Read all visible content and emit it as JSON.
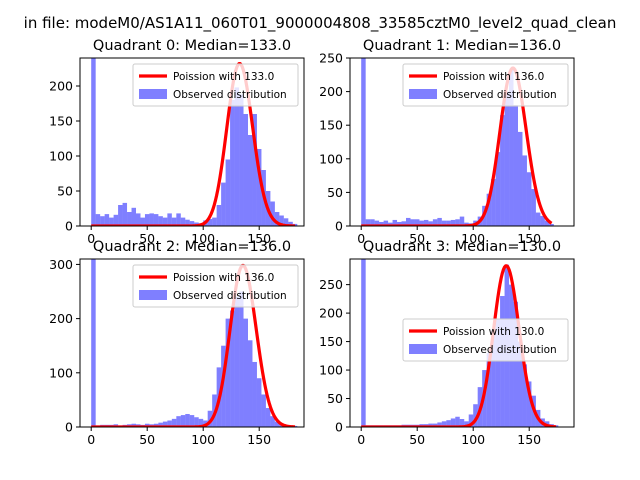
{
  "figure": {
    "suptitle": "in file: modeM0/AS1A11_060T01_9000004808_33585cztM0_level2_quad_clean",
    "colors": {
      "observed": "#0000ff",
      "poisson": "#ff0000",
      "axis": "#000000"
    }
  },
  "chart_data": [
    {
      "type": "bar",
      "title": "Quadrant 0: Median=133.0",
      "xlabel": "",
      "ylabel": "",
      "xlim": [
        -10,
        190
      ],
      "ylim": [
        0,
        240
      ],
      "xticks": [
        0,
        50,
        100,
        150
      ],
      "yticks": [
        0,
        50,
        100,
        150,
        200
      ],
      "legend": {
        "position": "top-right",
        "entries": [
          "Poission with 133.0",
          "Observed distribution"
        ]
      },
      "bin_width": 4,
      "observed": {
        "bin_starts": [
          0,
          4,
          8,
          12,
          16,
          20,
          24,
          28,
          32,
          36,
          40,
          44,
          48,
          52,
          56,
          60,
          64,
          68,
          72,
          76,
          80,
          84,
          88,
          92,
          96,
          100,
          104,
          108,
          112,
          116,
          120,
          124,
          128,
          132,
          136,
          140,
          144,
          148,
          152,
          156,
          160,
          164,
          168,
          172,
          176,
          180
        ],
        "values": [
          240,
          17,
          14,
          17,
          12,
          16,
          30,
          33,
          20,
          26,
          18,
          12,
          17,
          18,
          17,
          14,
          12,
          18,
          12,
          18,
          12,
          9,
          7,
          5,
          4,
          8,
          10,
          12,
          30,
          62,
          95,
          180,
          198,
          188,
          160,
          130,
          160,
          110,
          80,
          50,
          35,
          20,
          15,
          11,
          6,
          3
        ]
      },
      "poisson": {
        "mean": 133.0,
        "peak": 232
      }
    },
    {
      "type": "bar",
      "title": "Quadrant 1: Median=136.0",
      "xlabel": "",
      "ylabel": "",
      "xlim": [
        -10,
        190
      ],
      "ylim": [
        0,
        250
      ],
      "xticks": [
        0,
        50,
        100,
        150
      ],
      "yticks": [
        0,
        50,
        100,
        150,
        200,
        250
      ],
      "legend": {
        "position": "top-right",
        "entries": [
          "Poission with 136.0",
          "Observed distribution"
        ]
      },
      "bin_width": 4,
      "observed": {
        "bin_starts": [
          0,
          4,
          8,
          12,
          16,
          20,
          24,
          28,
          32,
          36,
          40,
          44,
          48,
          52,
          56,
          60,
          64,
          68,
          72,
          76,
          80,
          84,
          88,
          92,
          96,
          100,
          104,
          108,
          112,
          116,
          120,
          124,
          128,
          132,
          136,
          140,
          144,
          148,
          152,
          156,
          160,
          164,
          168
        ],
        "values": [
          250,
          10,
          10,
          8,
          6,
          8,
          5,
          9,
          6,
          7,
          12,
          10,
          10,
          8,
          9,
          7,
          10,
          12,
          8,
          8,
          9,
          10,
          14,
          5,
          4,
          8,
          14,
          30,
          48,
          70,
          110,
          165,
          200,
          232,
          180,
          140,
          105,
          80,
          55,
          20,
          15,
          8,
          3
        ]
      },
      "poisson": {
        "mean": 136.0,
        "peak": 235
      }
    },
    {
      "type": "bar",
      "title": "Quadrant 2: Median=136.0",
      "xlabel": "",
      "ylabel": "",
      "xlim": [
        -10,
        190
      ],
      "ylim": [
        0,
        310
      ],
      "xticks": [
        0,
        50,
        100,
        150
      ],
      "yticks": [
        0,
        100,
        200,
        300
      ],
      "legend": {
        "position": "top-right",
        "entries": [
          "Poission with 136.0",
          "Observed distribution"
        ]
      },
      "bin_width": 4,
      "observed": {
        "bin_starts": [
          0,
          4,
          8,
          12,
          16,
          20,
          24,
          28,
          32,
          36,
          40,
          44,
          48,
          52,
          56,
          60,
          64,
          68,
          72,
          76,
          80,
          84,
          88,
          92,
          96,
          100,
          104,
          108,
          112,
          116,
          120,
          124,
          128,
          132,
          136,
          140,
          144,
          148,
          152,
          156,
          160,
          164,
          168,
          172,
          176,
          180
        ],
        "values": [
          310,
          3,
          4,
          4,
          4,
          5,
          3,
          4,
          5,
          6,
          5,
          4,
          6,
          5,
          6,
          8,
          10,
          12,
          15,
          20,
          22,
          24,
          22,
          18,
          15,
          12,
          30,
          60,
          110,
          150,
          200,
          215,
          240,
          250,
          200,
          160,
          120,
          90,
          60,
          35,
          20,
          10,
          6,
          4,
          3,
          2
        ]
      },
      "poisson": {
        "mean": 136.0,
        "peak": 298
      }
    },
    {
      "type": "bar",
      "title": "Quadrant 3: Median=130.0",
      "xlabel": "",
      "ylabel": "",
      "xlim": [
        -10,
        190
      ],
      "ylim": [
        0,
        295
      ],
      "xticks": [
        0,
        50,
        100,
        150
      ],
      "yticks": [
        0,
        50,
        100,
        150,
        200,
        250
      ],
      "legend": {
        "position": "center-right",
        "entries": [
          "Poission with 130.0",
          "Observed distribution"
        ]
      },
      "bin_width": 4,
      "observed": {
        "bin_starts": [
          0,
          4,
          8,
          12,
          16,
          20,
          24,
          28,
          32,
          36,
          40,
          44,
          48,
          52,
          56,
          60,
          64,
          68,
          72,
          76,
          80,
          84,
          88,
          92,
          96,
          100,
          104,
          108,
          112,
          116,
          120,
          124,
          128,
          132,
          136,
          140,
          144,
          148,
          152,
          156,
          160,
          164,
          168,
          172
        ],
        "values": [
          295,
          3,
          3,
          3,
          3,
          3,
          3,
          3,
          3,
          4,
          4,
          4,
          4,
          5,
          5,
          6,
          6,
          8,
          10,
          12,
          15,
          18,
          14,
          10,
          22,
          40,
          70,
          100,
          130,
          170,
          190,
          230,
          285,
          250,
          220,
          150,
          110,
          80,
          55,
          30,
          15,
          10,
          5,
          3
        ]
      },
      "poisson": {
        "mean": 130.0,
        "peak": 283
      }
    }
  ]
}
